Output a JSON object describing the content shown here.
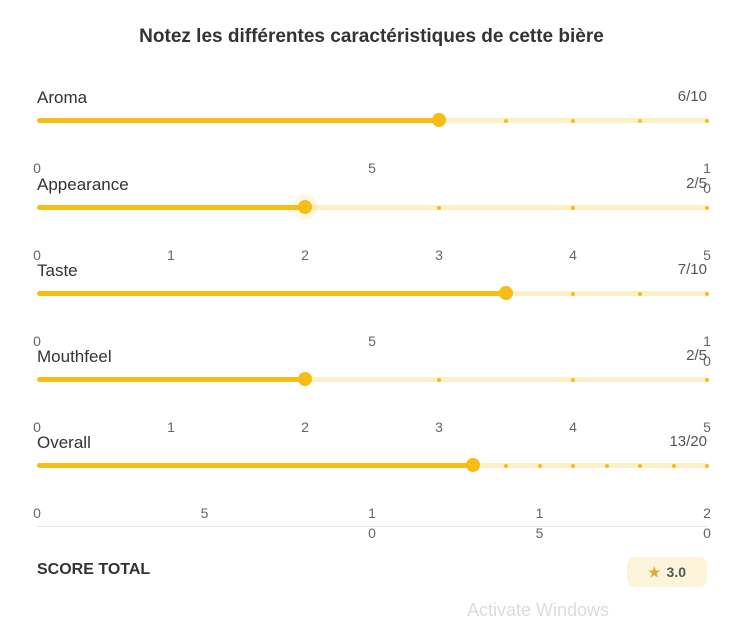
{
  "title": "Notez les différentes caractéristiques de cette bière",
  "colors": {
    "accent": "#f6bd17",
    "track": "#fdefc6",
    "badge_bg": "#fdf4dc"
  },
  "sliders": [
    {
      "name": "aroma",
      "label": "Aroma",
      "value": 6,
      "max": 10,
      "value_text": "6/10",
      "steps": [
        0,
        1,
        2,
        3,
        4,
        5,
        6,
        7,
        8,
        9,
        10
      ],
      "tick_labels": [
        "0",
        "5",
        "10"
      ],
      "tick_values": [
        0,
        5,
        10
      ]
    },
    {
      "name": "appearance",
      "label": "Appearance",
      "value": 2,
      "max": 5,
      "value_text": "2/5",
      "steps": [
        0,
        1,
        2,
        3,
        4,
        5
      ],
      "tick_labels": [
        "0",
        "1",
        "2",
        "3",
        "4",
        "5"
      ],
      "tick_values": [
        0,
        1,
        2,
        3,
        4,
        5
      ]
    },
    {
      "name": "taste",
      "label": "Taste",
      "value": 7,
      "max": 10,
      "value_text": "7/10",
      "steps": [
        0,
        1,
        2,
        3,
        4,
        5,
        6,
        7,
        8,
        9,
        10
      ],
      "tick_labels": [
        "0",
        "5",
        "10"
      ],
      "tick_values": [
        0,
        5,
        10
      ]
    },
    {
      "name": "mouthfeel",
      "label": "Mouthfeel",
      "value": 2,
      "max": 5,
      "value_text": "2/5",
      "steps": [
        0,
        1,
        2,
        3,
        4,
        5
      ],
      "tick_labels": [
        "0",
        "1",
        "2",
        "3",
        "4",
        "5"
      ],
      "tick_values": [
        0,
        1,
        2,
        3,
        4,
        5
      ]
    },
    {
      "name": "overall",
      "label": "Overall",
      "value": 13,
      "max": 20,
      "value_text": "13/20",
      "steps": [
        0,
        1,
        2,
        3,
        4,
        5,
        6,
        7,
        8,
        9,
        10,
        11,
        12,
        13,
        14,
        15,
        16,
        17,
        18,
        19,
        20
      ],
      "tick_labels": [
        "0",
        "5",
        "10",
        "15",
        "20"
      ],
      "tick_values": [
        0,
        5,
        10,
        15,
        20
      ]
    }
  ],
  "score": {
    "label": "SCORE TOTAL",
    "icon": "star-icon",
    "value": "3.0"
  },
  "watermark": "Activate Windows"
}
